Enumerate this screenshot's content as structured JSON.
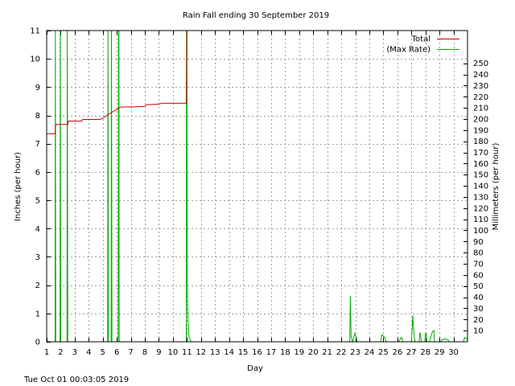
{
  "chart_data": {
    "type": "line",
    "title": "Rain Fall ending 30 September 2019",
    "xlabel": "Day",
    "ylabel": "Inches (per hour)",
    "y2label": "Millimeters (per hour)",
    "timestamp": "Tue Oct 01 00:03:05 2019",
    "xlim": [
      1,
      31
    ],
    "ylim": [
      0,
      11
    ],
    "y2lim": [
      0,
      279.4
    ],
    "grid": true,
    "legend_position": "top-right",
    "x_ticks": [
      1,
      2,
      3,
      4,
      5,
      6,
      7,
      8,
      9,
      10,
      11,
      12,
      13,
      14,
      15,
      16,
      17,
      18,
      19,
      20,
      21,
      22,
      23,
      24,
      25,
      26,
      27,
      28,
      29,
      30
    ],
    "y_ticks": [
      0,
      1,
      2,
      3,
      4,
      5,
      6,
      7,
      8,
      9,
      10,
      11
    ],
    "y2_ticks": [
      10,
      20,
      30,
      40,
      50,
      60,
      70,
      80,
      90,
      100,
      110,
      120,
      130,
      140,
      150,
      160,
      170,
      180,
      190,
      200,
      210,
      220,
      230,
      240,
      250
    ],
    "colors": {
      "total": "#cc0000",
      "rate": "#00aa00"
    },
    "series": [
      {
        "name": "Total",
        "color": "#cc0000",
        "points": [
          [
            1.0,
            7.35
          ],
          [
            1.6,
            7.35
          ],
          [
            1.65,
            7.68
          ],
          [
            2.5,
            7.68
          ],
          [
            2.55,
            7.8
          ],
          [
            3.5,
            7.8
          ],
          [
            3.55,
            7.86
          ],
          [
            4.8,
            7.86
          ],
          [
            5.0,
            7.9
          ],
          [
            5.3,
            8.0
          ],
          [
            5.6,
            8.1
          ],
          [
            5.9,
            8.18
          ],
          [
            6.1,
            8.25
          ],
          [
            6.3,
            8.3
          ],
          [
            7.0,
            8.3
          ],
          [
            8.0,
            8.32
          ],
          [
            8.1,
            8.38
          ],
          [
            9.0,
            8.4
          ],
          [
            9.2,
            8.43
          ],
          [
            10.95,
            8.43
          ],
          [
            11.0,
            11.0
          ]
        ]
      },
      {
        "name": "(Max Rate)",
        "color": "#00aa00",
        "points": [
          [
            1.0,
            0
          ],
          [
            1.6,
            0
          ],
          [
            1.62,
            11
          ],
          [
            1.65,
            0
          ],
          [
            1.95,
            0
          ],
          [
            1.97,
            11
          ],
          [
            2.0,
            0
          ],
          [
            2.45,
            0
          ],
          [
            2.47,
            11
          ],
          [
            2.5,
            0
          ],
          [
            5.35,
            0
          ],
          [
            5.37,
            11
          ],
          [
            5.4,
            0
          ],
          [
            5.6,
            0
          ],
          [
            5.62,
            11
          ],
          [
            5.65,
            0
          ],
          [
            6.1,
            0
          ],
          [
            6.12,
            11
          ],
          [
            6.15,
            11
          ],
          [
            6.17,
            0
          ],
          [
            10.95,
            0
          ],
          [
            10.97,
            11
          ],
          [
            11.0,
            11
          ],
          [
            11.02,
            2.3
          ],
          [
            11.05,
            1.1
          ],
          [
            11.15,
            0.15
          ],
          [
            11.3,
            0
          ],
          [
            13.0,
            0
          ],
          [
            13.05,
            0.03
          ],
          [
            13.1,
            0
          ],
          [
            22.6,
            0
          ],
          [
            22.65,
            1.62
          ],
          [
            22.7,
            0.2
          ],
          [
            22.8,
            0
          ],
          [
            22.9,
            0.15
          ],
          [
            22.95,
            0.3
          ],
          [
            23.05,
            0.2
          ],
          [
            23.15,
            0
          ],
          [
            24.8,
            0
          ],
          [
            24.9,
            0.25
          ],
          [
            25.0,
            0.2
          ],
          [
            25.1,
            0.15
          ],
          [
            25.2,
            0
          ],
          [
            26.1,
            0
          ],
          [
            26.2,
            0.1
          ],
          [
            26.3,
            0.15
          ],
          [
            26.4,
            0
          ],
          [
            27.0,
            0
          ],
          [
            27.05,
            0.4
          ],
          [
            27.1,
            0.93
          ],
          [
            27.15,
            0.5
          ],
          [
            27.2,
            0.2
          ],
          [
            27.25,
            0
          ],
          [
            27.55,
            0
          ],
          [
            27.6,
            0.3
          ],
          [
            27.65,
            0.3
          ],
          [
            27.7,
            0
          ],
          [
            27.95,
            0
          ],
          [
            28.0,
            0.3
          ],
          [
            28.05,
            0.3
          ],
          [
            28.1,
            0
          ],
          [
            28.3,
            0
          ],
          [
            28.4,
            0.2
          ],
          [
            28.5,
            0.35
          ],
          [
            28.6,
            0.4
          ],
          [
            28.65,
            0
          ],
          [
            29.1,
            0
          ],
          [
            29.2,
            0.08
          ],
          [
            29.4,
            0.1
          ],
          [
            29.6,
            0.08
          ],
          [
            29.7,
            0
          ],
          [
            30.7,
            0
          ],
          [
            30.8,
            0.15
          ],
          [
            31.0,
            0.1
          ]
        ]
      }
    ]
  }
}
